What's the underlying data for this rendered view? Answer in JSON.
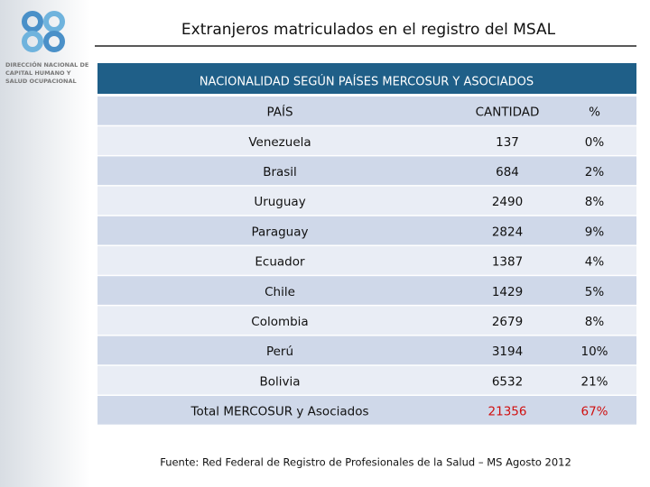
{
  "header": {
    "title": "Extranjeros matriculados en el registro del MSAL",
    "logo_lines": [
      "DIRECCIÓN NACIONAL DE",
      "CAPITAL HUMANO Y",
      "SALUD OCUPACIONAL"
    ]
  },
  "table": {
    "title": "NACIONALIDAD SEGÚN PAÍSES MERCOSUR Y ASOCIADOS",
    "columns": [
      "PAÍS",
      "CANTIDAD",
      "%"
    ],
    "rows": [
      [
        "Venezuela",
        "137",
        "0%"
      ],
      [
        "Brasil",
        "684",
        "2%"
      ],
      [
        "Uruguay",
        "2490",
        "8%"
      ],
      [
        "Paraguay",
        "2824",
        "9%"
      ],
      [
        "Ecuador",
        "1387",
        "4%"
      ],
      [
        "Chile",
        "1429",
        "5%"
      ],
      [
        "Colombia",
        "2679",
        "8%"
      ],
      [
        "Perú",
        "3194",
        "10%"
      ],
      [
        "Bolivia",
        "6532",
        "21%"
      ]
    ],
    "total": [
      "Total MERCOSUR y Asociados",
      "21356",
      "67%"
    ]
  },
  "source": "Fuente: Red Federal de Registro de Profesionales de la Salud – MS Agosto 2012"
}
